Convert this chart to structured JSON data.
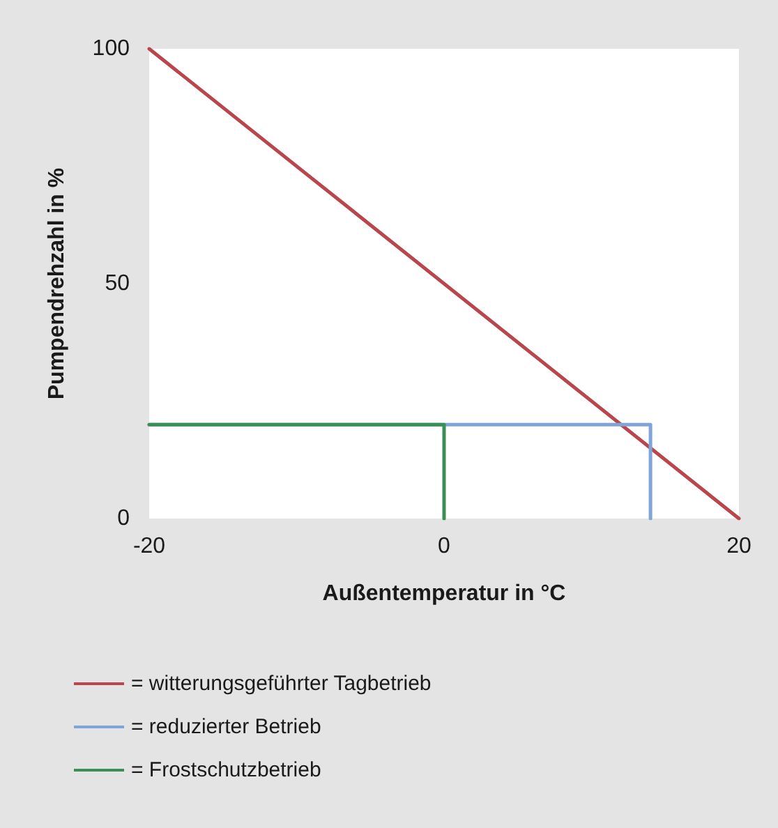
{
  "chart_data": {
    "type": "line",
    "xlabel": "Außentemperatur in °C",
    "ylabel": "Pumpendrehzahl in %",
    "xlim": [
      -20,
      20
    ],
    "xticks": [
      -20,
      0,
      20
    ],
    "ylim": [
      0,
      100
    ],
    "yticks": [
      0,
      50,
      100
    ],
    "series": [
      {
        "name": "= witterungsgeführter Tagbetrieb",
        "color": "#b8464c",
        "x": [
          -20,
          20
        ],
        "values": [
          100,
          0
        ]
      },
      {
        "name": "= reduzierter Betrieb",
        "color": "#7ea4d8",
        "x": [
          -20,
          14,
          14
        ],
        "values": [
          20,
          20,
          0
        ]
      },
      {
        "name": "= Frostschutzbetrieb",
        "color": "#3a8f55",
        "x": [
          -20,
          0,
          0
        ],
        "values": [
          20,
          20,
          0
        ]
      }
    ],
    "grid": false,
    "legend": "bottom",
    "marker": "none",
    "line_style": "solid"
  }
}
